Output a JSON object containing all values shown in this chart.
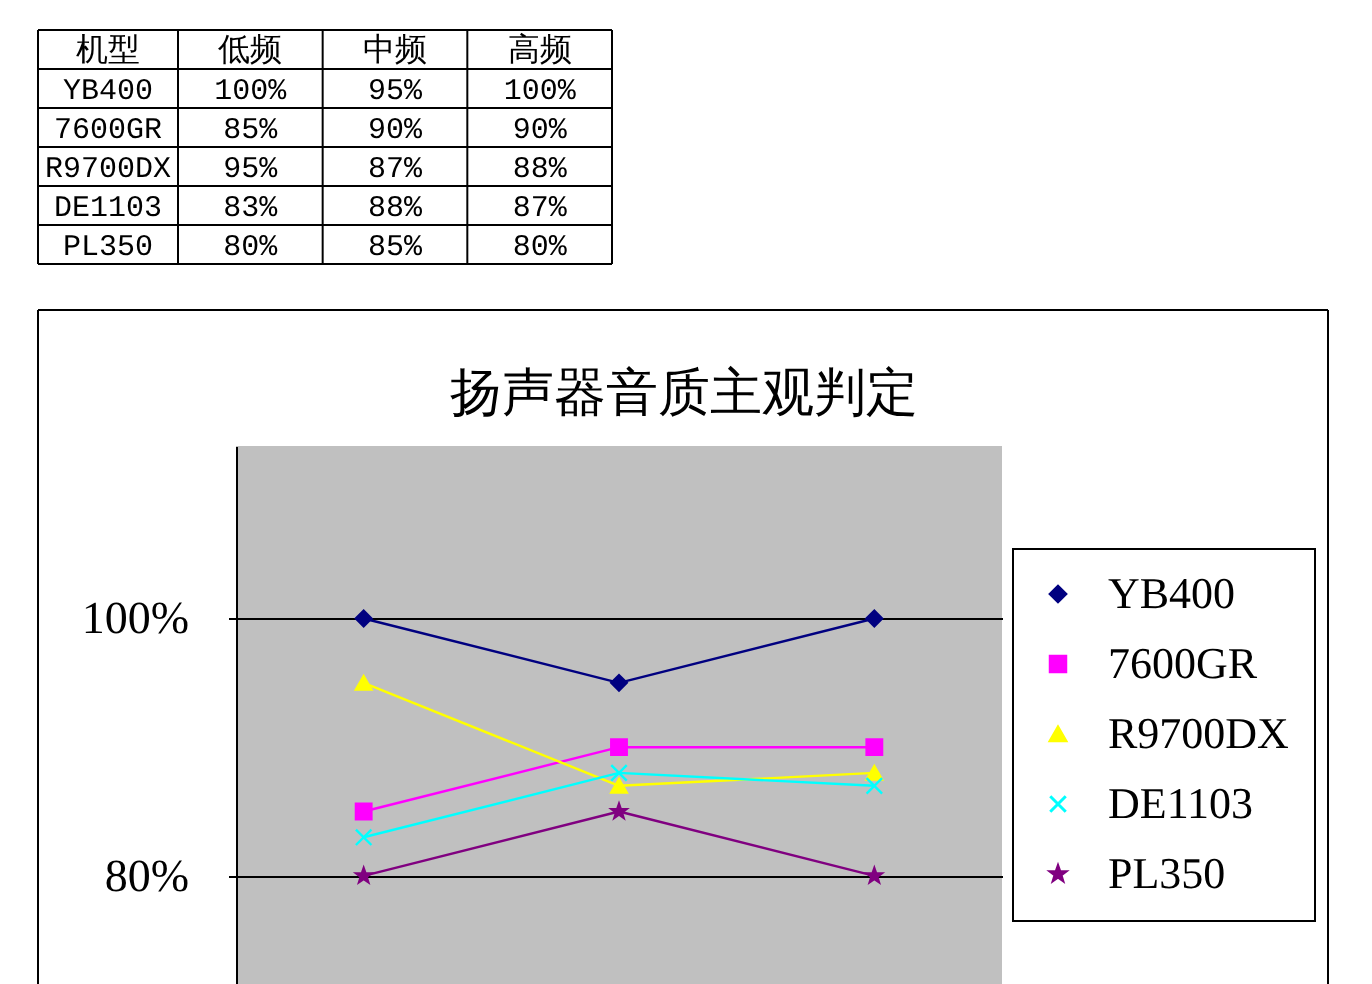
{
  "chart_data": [
    {
      "type": "other",
      "annotations": [
        "机型",
        "低频",
        "中频",
        "高频",
        "YB400",
        "100%",
        "95%",
        "100%",
        "7600GR",
        "85%",
        "90%",
        "90%",
        "R9700DX",
        "95%",
        "87%",
        "88%",
        "DE1103",
        "83%",
        "88%",
        "87%",
        "PL350",
        "80%",
        "85%",
        "80%"
      ]
    },
    {
      "type": "line",
      "title": "扬声器音质主观判定",
      "categories": [
        null,
        null,
        null
      ],
      "series": [
        {
          "name": "YB400",
          "color": "#000080",
          "marker": "diamond",
          "values": [
            100,
            95,
            100
          ]
        },
        {
          "name": "7600GR",
          "color": "#ff00ff",
          "marker": "square",
          "values": [
            85,
            90,
            90
          ]
        },
        {
          "name": "R9700DX",
          "color": "#ffff00",
          "marker": "triangle",
          "values": [
            95,
            87,
            88
          ]
        },
        {
          "name": "DE1103",
          "color": "#00ffff",
          "marker": "cross",
          "values": [
            83,
            88,
            87
          ]
        },
        {
          "name": "PL350",
          "color": "#800080",
          "marker": "star",
          "values": [
            80,
            85,
            80
          ]
        }
      ],
      "ylim": [
        71.6,
        113.4
      ],
      "yticks": [
        {
          "value": 80,
          "label": "80%"
        },
        {
          "value": 100,
          "label": "100%"
        }
      ],
      "grid": "y",
      "legend": "right",
      "tick_labels": "y"
    }
  ]
}
